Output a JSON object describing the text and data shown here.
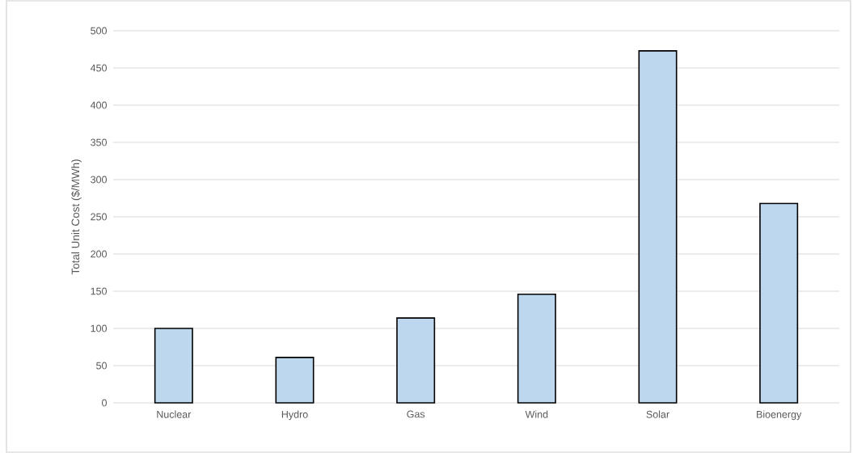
{
  "chart_data": {
    "type": "bar",
    "ylabel": "Total Unit Cost ($/MWh)",
    "categories": [
      "Nuclear",
      "Hydro",
      "Gas",
      "Wind",
      "Solar",
      "Bioenergy"
    ],
    "values": [
      100,
      61,
      114,
      146,
      473,
      268
    ],
    "color": "#bdd7ee",
    "ylim": [
      0,
      500
    ],
    "yticks": [
      0,
      50,
      100,
      150,
      200,
      250,
      300,
      350,
      400,
      450,
      500
    ],
    "grid": "y"
  }
}
